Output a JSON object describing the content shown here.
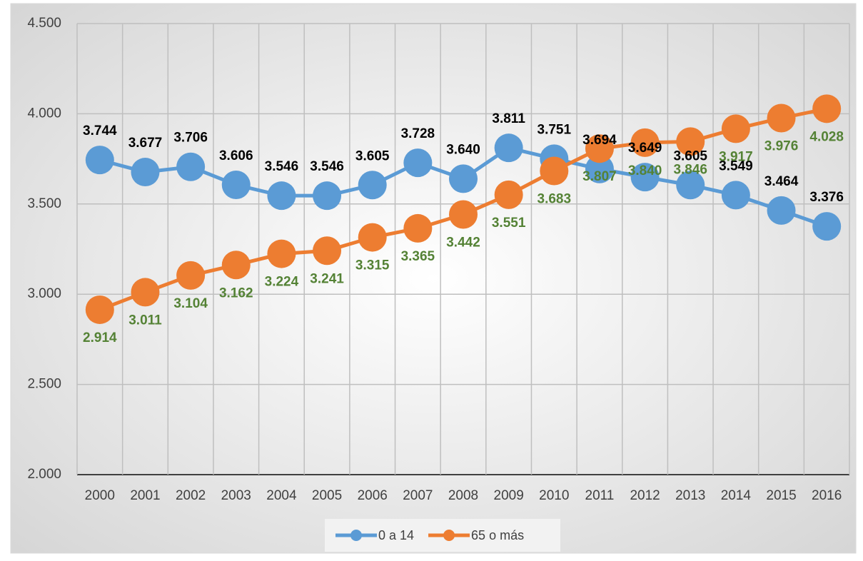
{
  "chart_data": {
    "type": "line",
    "categories": [
      "2000",
      "2001",
      "2002",
      "2003",
      "2004",
      "2005",
      "2006",
      "2007",
      "2008",
      "2009",
      "2010",
      "2011",
      "2012",
      "2013",
      "2014",
      "2015",
      "2016"
    ],
    "series": [
      {
        "name": "0 a 14",
        "color": "#5b9bd5",
        "label_color": "#000000",
        "label_position": "above",
        "values": [
          3744,
          3677,
          3706,
          3606,
          3546,
          3546,
          3605,
          3728,
          3640,
          3811,
          3751,
          3694,
          3649,
          3605,
          3549,
          3464,
          3376
        ],
        "value_labels": [
          "3.744",
          "3.677",
          "3.706",
          "3.606",
          "3.546",
          "3.546",
          "3.605",
          "3.728",
          "3.640",
          "3.811",
          "3.751",
          "3.694",
          "3.649",
          "3.605",
          "3.549",
          "3.464",
          "3.376"
        ]
      },
      {
        "name": "65 o más",
        "color": "#ed7d31",
        "label_color": "#548235",
        "label_position": "below",
        "values": [
          2914,
          3011,
          3104,
          3162,
          3224,
          3241,
          3315,
          3365,
          3442,
          3551,
          3683,
          3807,
          3840,
          3846,
          3917,
          3976,
          4028
        ],
        "value_labels": [
          "2.914",
          "3.011",
          "3.104",
          "3.162",
          "3.224",
          "3.241",
          "3.315",
          "3.365",
          "3.442",
          "3.551",
          "3.683",
          "3.807",
          "3.840",
          "3.846",
          "3.917",
          "3.976",
          "4.028"
        ]
      }
    ],
    "ylim": [
      2000,
      4500
    ],
    "yticks": [
      {
        "value": 2000,
        "label": "2.000"
      },
      {
        "value": 2500,
        "label": "2.500"
      },
      {
        "value": 3000,
        "label": "3.000"
      },
      {
        "value": 3500,
        "label": "3.500"
      },
      {
        "value": 4000,
        "label": "4.000"
      },
      {
        "value": 4500,
        "label": "4.500"
      }
    ],
    "grid": true,
    "legend": "bottom"
  }
}
